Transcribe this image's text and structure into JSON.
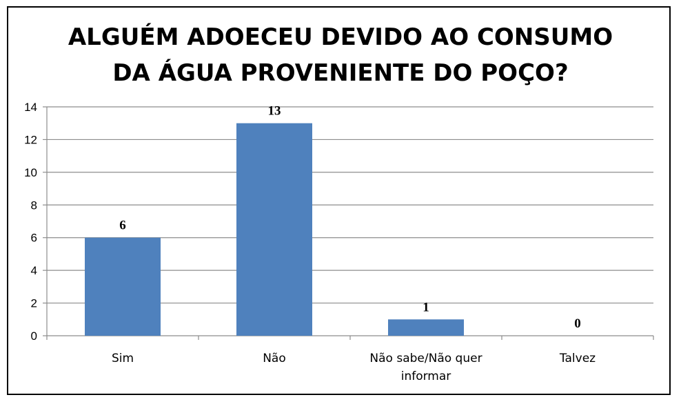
{
  "chart_data": {
    "type": "bar",
    "title_lines": [
      "ALGUÉM ADOECEU DEVIDO AO CONSUMO",
      "DA ÁGUA PROVENIENTE DO POÇO?"
    ],
    "categories": [
      [
        "Sim"
      ],
      [
        "Não"
      ],
      [
        "Não sabe/Não quer",
        "informar"
      ],
      [
        "Talvez"
      ]
    ],
    "values": [
      6,
      13,
      1,
      0
    ],
    "data_labels": [
      "6",
      "13",
      "1",
      "0"
    ],
    "ylim": [
      0,
      14
    ],
    "yticks": [
      0,
      2,
      4,
      6,
      8,
      10,
      12,
      14
    ],
    "bar_color": "#4F81BD",
    "grid": true,
    "legend": "none"
  }
}
